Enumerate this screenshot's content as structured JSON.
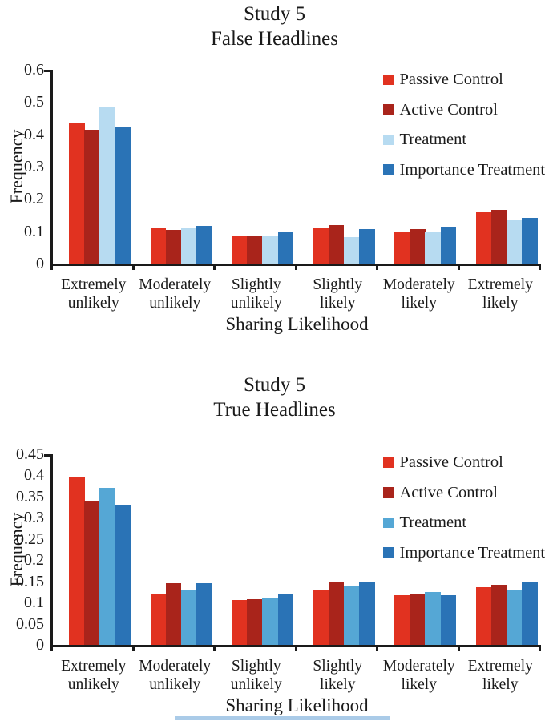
{
  "page": {
    "background": "#ffffff",
    "text_color": "#1a1a1a",
    "axis_color": "#1a1a1a",
    "bottom_strip_color": "#aacbe8"
  },
  "chart_data": [
    {
      "type": "bar",
      "title_line1": "Study 5",
      "title_line2": "False Headlines",
      "xlabel": "Sharing Likelihood",
      "ylabel": "Frequency",
      "ylim": [
        0,
        0.6
      ],
      "ytick_labels": [
        "0",
        "0.1",
        "0.2",
        "0.3",
        "0.4",
        "0.5",
        "0.6"
      ],
      "grid": false,
      "legend_position": "top-right",
      "categories": [
        [
          "Extremely",
          "unlikely"
        ],
        [
          "Moderately",
          "unlikely"
        ],
        [
          "Slightly",
          "unlikely"
        ],
        [
          "Slightly",
          "likely"
        ],
        [
          "Moderately",
          "likely"
        ],
        [
          "Extremely",
          "likely"
        ]
      ],
      "series": [
        {
          "name": "Passive Control",
          "color": "#e13220",
          "values": [
            0.435,
            0.11,
            0.085,
            0.112,
            0.098,
            0.158
          ]
        },
        {
          "name": "Active Control",
          "color": "#a9241b",
          "values": [
            0.415,
            0.104,
            0.088,
            0.118,
            0.107,
            0.165
          ]
        },
        {
          "name": "Treatment",
          "color": "#b7dbf1",
          "values": [
            0.487,
            0.111,
            0.088,
            0.083,
            0.096,
            0.135
          ]
        },
        {
          "name": "Importance Treatment",
          "color": "#2a73b6",
          "values": [
            0.421,
            0.116,
            0.099,
            0.107,
            0.115,
            0.141
          ]
        }
      ]
    },
    {
      "type": "bar",
      "title_line1": "Study 5",
      "title_line2": "True Headlines",
      "xlabel": "Sharing Likelihood",
      "ylabel": "Frequency",
      "ylim": [
        0,
        0.45
      ],
      "ytick_labels": [
        "0",
        "0.05",
        "0.1",
        "0.15",
        "0.2",
        "0.25",
        "0.3",
        "0.35",
        "0.4",
        "0.45"
      ],
      "grid": false,
      "legend_position": "top-right",
      "categories": [
        [
          "Extremely",
          "unlikely"
        ],
        [
          "Moderately",
          "unlikely"
        ],
        [
          "Slightly",
          "unlikely"
        ],
        [
          "Slightly",
          "likely"
        ],
        [
          "Moderately",
          "likely"
        ],
        [
          "Extremely",
          "likely"
        ]
      ],
      "series": [
        {
          "name": "Passive Control",
          "color": "#e13220",
          "values": [
            0.395,
            0.12,
            0.105,
            0.13,
            0.118,
            0.136
          ]
        },
        {
          "name": "Active Control",
          "color": "#a9241b",
          "values": [
            0.34,
            0.145,
            0.108,
            0.148,
            0.121,
            0.142
          ]
        },
        {
          "name": "Treatment",
          "color": "#55a7d5",
          "values": [
            0.37,
            0.13,
            0.111,
            0.139,
            0.125,
            0.13
          ]
        },
        {
          "name": "Importance Treatment",
          "color": "#2a73b6",
          "values": [
            0.33,
            0.145,
            0.12,
            0.15,
            0.117,
            0.147
          ]
        }
      ]
    }
  ]
}
